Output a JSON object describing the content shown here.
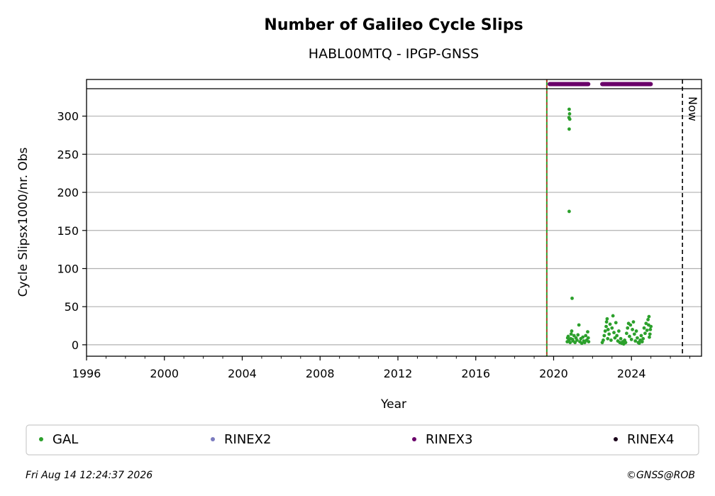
{
  "chart_data": {
    "type": "scatter",
    "title": "Number of Galileo Cycle Slips",
    "subtitle": "HABL00MTQ - IPGP-GNSS",
    "xlabel": "Year",
    "ylabel": "Cycle Slipsx1000/nr. Obs",
    "xlim": [
      1996,
      2027.6
    ],
    "ylim": [
      -15,
      336
    ],
    "xticks": [
      "1996",
      "2000",
      "2004",
      "2008",
      "2012",
      "2016",
      "2020",
      "2024"
    ],
    "yticks": [
      "0",
      "50",
      "100",
      "150",
      "200",
      "250",
      "300"
    ],
    "grid": "horizontal",
    "now_label": "Now",
    "now_year": 2026.62,
    "start_line_year": 2019.65,
    "series": [
      {
        "name": "GAL",
        "color": "#2ca02c",
        "points": [
          [
            2020.8,
            309
          ],
          [
            2020.82,
            303
          ],
          [
            2020.79,
            298
          ],
          [
            2020.83,
            296
          ],
          [
            2020.8,
            283
          ],
          [
            2020.8,
            175
          ],
          [
            2020.95,
            61
          ],
          [
            2021.3,
            26
          ],
          [
            2020.7,
            4
          ],
          [
            2020.72,
            9
          ],
          [
            2020.75,
            11
          ],
          [
            2020.78,
            6
          ],
          [
            2020.85,
            3
          ],
          [
            2020.88,
            8
          ],
          [
            2020.9,
            14
          ],
          [
            2020.93,
            18
          ],
          [
            2020.97,
            7
          ],
          [
            2021.0,
            5
          ],
          [
            2021.05,
            12
          ],
          [
            2021.1,
            3
          ],
          [
            2021.15,
            9
          ],
          [
            2021.2,
            6
          ],
          [
            2021.25,
            13
          ],
          [
            2021.35,
            4
          ],
          [
            2021.4,
            8
          ],
          [
            2021.45,
            2
          ],
          [
            2021.5,
            10
          ],
          [
            2021.55,
            5
          ],
          [
            2021.6,
            3
          ],
          [
            2021.65,
            12
          ],
          [
            2021.7,
            6
          ],
          [
            2021.75,
            17
          ],
          [
            2021.78,
            9
          ],
          [
            2021.8,
            4
          ],
          [
            2022.5,
            3
          ],
          [
            2022.55,
            6
          ],
          [
            2022.6,
            12
          ],
          [
            2022.65,
            18
          ],
          [
            2022.7,
            24
          ],
          [
            2022.72,
            30
          ],
          [
            2022.75,
            34
          ],
          [
            2022.78,
            8
          ],
          [
            2022.8,
            20
          ],
          [
            2022.85,
            14
          ],
          [
            2022.9,
            27
          ],
          [
            2022.95,
            6
          ],
          [
            2023.0,
            22
          ],
          [
            2023.05,
            38
          ],
          [
            2023.1,
            16
          ],
          [
            2023.15,
            9
          ],
          [
            2023.2,
            29
          ],
          [
            2023.25,
            12
          ],
          [
            2023.3,
            5
          ],
          [
            2023.35,
            18
          ],
          [
            2023.4,
            3
          ],
          [
            2023.45,
            8
          ],
          [
            2023.5,
            2
          ],
          [
            2023.55,
            4
          ],
          [
            2023.6,
            1
          ],
          [
            2023.65,
            6
          ],
          [
            2023.7,
            3
          ],
          [
            2023.75,
            15
          ],
          [
            2023.8,
            22
          ],
          [
            2023.85,
            28
          ],
          [
            2023.9,
            11
          ],
          [
            2023.95,
            26
          ],
          [
            2024.0,
            7
          ],
          [
            2024.05,
            20
          ],
          [
            2024.1,
            30
          ],
          [
            2024.15,
            14
          ],
          [
            2024.2,
            5
          ],
          [
            2024.25,
            18
          ],
          [
            2024.3,
            9
          ],
          [
            2024.35,
            3
          ],
          [
            2024.4,
            2
          ],
          [
            2024.45,
            6
          ],
          [
            2024.5,
            12
          ],
          [
            2024.55,
            4
          ],
          [
            2024.6,
            8
          ],
          [
            2024.65,
            22
          ],
          [
            2024.7,
            15
          ],
          [
            2024.75,
            28
          ],
          [
            2024.8,
            19
          ],
          [
            2024.85,
            33
          ],
          [
            2024.88,
            26
          ],
          [
            2024.9,
            37
          ],
          [
            2024.92,
            10
          ],
          [
            2024.95,
            14
          ],
          [
            2024.97,
            20
          ],
          [
            2025.0,
            24
          ]
        ]
      },
      {
        "name": "RINEX2",
        "color": "#7b7bbf",
        "segments": []
      },
      {
        "name": "RINEX3",
        "color": "#6a006a",
        "segments": [
          [
            2019.8,
            2021.8
          ],
          [
            2022.5,
            2025.0
          ]
        ]
      },
      {
        "name": "RINEX4",
        "color": "#1a001a",
        "segments": []
      }
    ]
  },
  "footer": {
    "timestamp": "Fri Aug 14 12:24:37 2026",
    "credit": "©GNSS@ROB"
  }
}
